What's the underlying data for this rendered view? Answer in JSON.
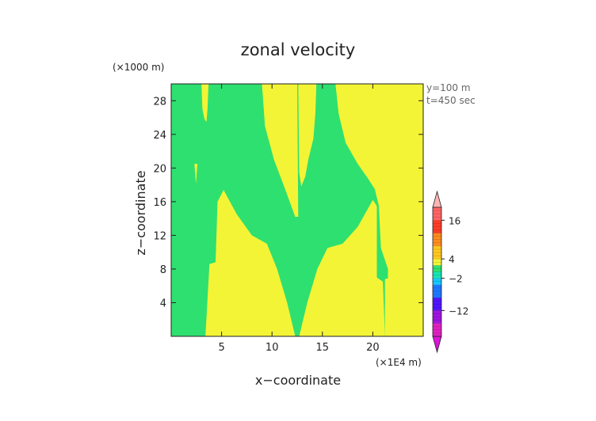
{
  "chart_data": {
    "type": "heatmap",
    "title": "zonal velocity",
    "xlabel": "x−coordinate",
    "ylabel": "z−coordinate",
    "x_unit": "(×1E4 m)",
    "y_unit": "(×1000 m)",
    "annotations": [
      "y=100 m",
      "t=450 sec"
    ],
    "xlim": [
      0,
      25
    ],
    "ylim": [
      0,
      30
    ],
    "x_ticks": [
      5,
      10,
      15,
      20
    ],
    "y_ticks": [
      4,
      8,
      12,
      16,
      20,
      24,
      28
    ],
    "colors": {
      "green_band": "#2ee070",
      "yellow_band": "#f4f436"
    },
    "regions": [
      {
        "band": "yellow",
        "points": [
          [
            3.4,
            0
          ],
          [
            3.8,
            8.6
          ],
          [
            4.4,
            8.8
          ],
          [
            4.6,
            16
          ],
          [
            5.2,
            17.4
          ],
          [
            6.5,
            14.5
          ],
          [
            8,
            12
          ],
          [
            9.5,
            11
          ],
          [
            10.5,
            8
          ],
          [
            11.5,
            4
          ],
          [
            12.3,
            0
          ]
        ]
      },
      {
        "band": "yellow",
        "points": [
          [
            12.7,
            0
          ],
          [
            13.5,
            4
          ],
          [
            14.5,
            8
          ],
          [
            15.5,
            10.5
          ],
          [
            17,
            11
          ],
          [
            18.5,
            13
          ],
          [
            20,
            16.2
          ],
          [
            20.4,
            15.5
          ],
          [
            20.4,
            7
          ],
          [
            21,
            6.5
          ],
          [
            21.2,
            0
          ]
        ]
      },
      {
        "band": "yellow",
        "points": [
          [
            21.2,
            0
          ],
          [
            21.2,
            6.8
          ],
          [
            21.5,
            6.9
          ],
          [
            21.5,
            8
          ],
          [
            20.8,
            10.5
          ],
          [
            20.6,
            15.5
          ],
          [
            20.2,
            17.5
          ],
          [
            19.5,
            18.8
          ],
          [
            18.5,
            20.5
          ],
          [
            17.3,
            23
          ],
          [
            16.6,
            26.5
          ],
          [
            16.3,
            30
          ],
          [
            25,
            30
          ],
          [
            25,
            0
          ]
        ]
      },
      {
        "band": "yellow",
        "points": [
          [
            9,
            30
          ],
          [
            9.3,
            25
          ],
          [
            10.2,
            21
          ],
          [
            11.3,
            17.5
          ],
          [
            12.3,
            14.2
          ],
          [
            12.6,
            14.2
          ],
          [
            12.5,
            30
          ]
        ]
      },
      {
        "band": "yellow",
        "points": [
          [
            12.6,
            30
          ],
          [
            12.7,
            19.5
          ],
          [
            12.9,
            17.8
          ],
          [
            13.3,
            19
          ],
          [
            13.6,
            21
          ],
          [
            14.1,
            23.5
          ],
          [
            14.3,
            26.5
          ],
          [
            14.4,
            30
          ]
        ]
      },
      {
        "band": "yellow",
        "points": [
          [
            3,
            30
          ],
          [
            3.1,
            27
          ],
          [
            3.3,
            25.8
          ],
          [
            3.5,
            25.5
          ],
          [
            3.6,
            27
          ],
          [
            3.7,
            30
          ]
        ]
      },
      {
        "band": "yellow",
        "points": [
          [
            21.5,
            30
          ],
          [
            21.6,
            27
          ],
          [
            21.8,
            25.8
          ],
          [
            22,
            25.5
          ],
          [
            22.1,
            27
          ],
          [
            22.3,
            30
          ]
        ]
      },
      {
        "band": "yellow",
        "points": [
          [
            10.2,
            30
          ],
          [
            10.4,
            29
          ],
          [
            10.6,
            29.8
          ],
          [
            10.7,
            30
          ]
        ]
      },
      {
        "band": "yellow",
        "points": [
          [
            2.3,
            20.5
          ],
          [
            2.45,
            18.1
          ],
          [
            2.6,
            20.5
          ]
        ]
      }
    ],
    "colorbar": {
      "tick_labels": [
        "16",
        "4",
        "−2",
        "−12"
      ],
      "tick_values": [
        16,
        4,
        -2,
        -12
      ],
      "range": [
        -20,
        20
      ],
      "bands": [
        {
          "from": -20,
          "to": -16,
          "color": "#e020c0"
        },
        {
          "from": -16,
          "to": -12,
          "color": "#a014e0"
        },
        {
          "from": -12,
          "to": -8,
          "color": "#5014ff"
        },
        {
          "from": -8,
          "to": -4,
          "color": "#1e78ff"
        },
        {
          "from": -4,
          "to": -2,
          "color": "#14c8ff"
        },
        {
          "from": -2,
          "to": 0,
          "color": "#14e6b4"
        },
        {
          "from": 0,
          "to": 2,
          "color": "#2ee070"
        },
        {
          "from": 2,
          "to": 4,
          "color": "#f4f436"
        },
        {
          "from": 4,
          "to": 8,
          "color": "#ffc81e"
        },
        {
          "from": 8,
          "to": 12,
          "color": "#ff8c1e"
        },
        {
          "from": 12,
          "to": 16,
          "color": "#ff3c28"
        },
        {
          "from": 16,
          "to": 20,
          "color": "#ff6464"
        }
      ],
      "cap_top_color": "#ffb4b4",
      "cap_bottom_color": "#dc14dc"
    }
  }
}
